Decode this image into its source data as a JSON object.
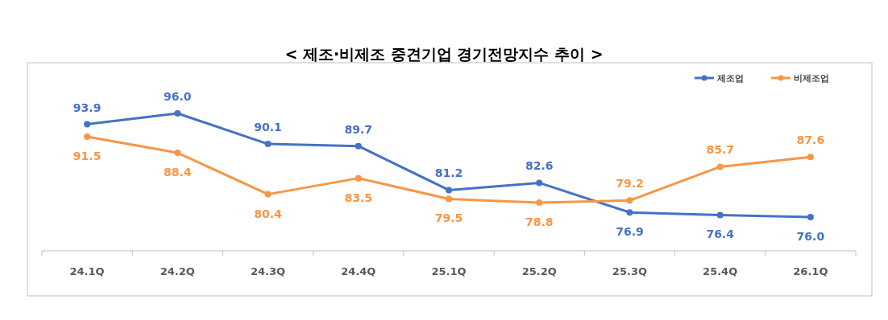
{
  "chart_data": {
    "type": "line",
    "title": "< 제조·비제조 중견기업 경기전망지수 추이 >",
    "categories": [
      "24.1Q",
      "24.2Q",
      "24.3Q",
      "24.4Q",
      "25.1Q",
      "25.2Q",
      "25.3Q",
      "25.4Q",
      "26.1Q"
    ],
    "series": [
      {
        "name": "제조업",
        "color": "#4472c4",
        "values": [
          93.9,
          96,
          90.1,
          89.7,
          81.2,
          82.6,
          76.9,
          76.4,
          76
        ],
        "value_labels": [
          "93.9",
          "96.0",
          "90.1",
          "89.7",
          "81.2",
          "82.6",
          "76.9",
          "76.4",
          "76.0"
        ]
      },
      {
        "name": "비제조업",
        "color": "#f79646",
        "values": [
          91.5,
          88.4,
          80.4,
          83.5,
          79.5,
          78.8,
          79.2,
          85.7,
          87.6
        ],
        "value_labels": [
          "91.5",
          "88.4",
          "80.4",
          "83.5",
          "79.5",
          "78.8",
          "79.2",
          "85.7",
          "87.6"
        ]
      }
    ],
    "legend": "top right",
    "marker": "circle"
  }
}
